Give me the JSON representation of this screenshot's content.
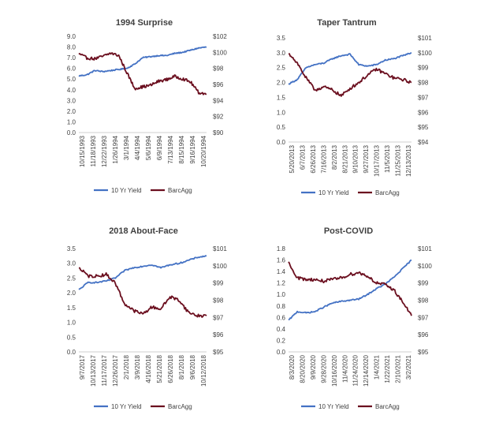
{
  "colors": {
    "yield": "#4472C4",
    "barcagg": "#6B0F1F",
    "text": "#404040",
    "axis": "#BFBFBF"
  },
  "chart_data": [
    {
      "type": "line",
      "title": "1994 Surprise",
      "x_tick_labels": [
        "10/15/1993",
        "11/18/1993",
        "12/22/1993",
        "1/26/1994",
        "3/1/1994",
        "4/4/1994",
        "5/6/1994",
        "6/9/1994",
        "7/13/1994",
        "8/15/1994",
        "9/16/1994",
        "10/20/1994"
      ],
      "y_left": {
        "ticks": [
          "0.0",
          "1.0",
          "2.0",
          "3.0",
          "4.0",
          "5.0",
          "6.0",
          "7.0",
          "8.0",
          "9.0"
        ],
        "range": [
          0,
          9
        ]
      },
      "y_right": {
        "ticks": [
          "$90",
          "$92",
          "$94",
          "$96",
          "$98",
          "$100",
          "$102"
        ],
        "range": [
          90,
          102
        ]
      },
      "legend": {
        "position": "bottom",
        "entries": [
          "10 Yr Yield",
          "BarcAgg"
        ]
      },
      "series": [
        {
          "name": "10 Yr Yield",
          "axis": "left",
          "values": [
            5.3,
            5.4,
            5.8,
            5.7,
            5.8,
            5.9,
            6.0,
            6.4,
            7.0,
            7.1,
            7.2,
            7.2,
            7.4,
            7.5,
            7.7,
            7.9,
            8.0
          ]
        },
        {
          "name": "BarcAgg",
          "axis": "right",
          "values": [
            99.8,
            99.3,
            99.2,
            99.5,
            99.9,
            99.6,
            97.5,
            95.5,
            95.7,
            95.9,
            96.4,
            96.6,
            97.0,
            96.7,
            96.3,
            95.0,
            94.8
          ]
        }
      ]
    },
    {
      "type": "line",
      "title": "Taper Tantrum",
      "x_tick_labels": [
        "5/20/2013",
        "6/7/2013",
        "6/26/2013",
        "7/16/2013",
        "8/2/2013",
        "8/21/2013",
        "9/10/2013",
        "9/27/2013",
        "10/17/2013",
        "11/5/2013",
        "11/25/2013",
        "12/13/2013"
      ],
      "y_left": {
        "ticks": [
          "0.0",
          "0.5",
          "1.0",
          "1.5",
          "2.0",
          "2.5",
          "3.0",
          "3.5"
        ],
        "range": [
          0,
          3.5
        ]
      },
      "y_right": {
        "ticks": [
          "$94",
          "$95",
          "$96",
          "$97",
          "$98",
          "$99",
          "$100",
          "$101"
        ],
        "range": [
          94,
          101
        ]
      },
      "legend": {
        "position": "bottom",
        "entries": [
          "10 Yr Yield",
          "BarcAgg"
        ]
      },
      "series": [
        {
          "name": "10 Yr Yield",
          "axis": "left",
          "values": [
            1.95,
            2.1,
            2.5,
            2.6,
            2.65,
            2.8,
            2.9,
            2.95,
            2.6,
            2.55,
            2.6,
            2.75,
            2.8,
            2.9,
            3.0
          ]
        },
        {
          "name": "BarcAgg",
          "axis": "right",
          "values": [
            100.0,
            99.3,
            98.3,
            97.5,
            97.7,
            97.5,
            97.1,
            97.6,
            98.0,
            98.5,
            98.9,
            98.6,
            98.3,
            98.2,
            98.0
          ]
        }
      ]
    },
    {
      "type": "line",
      "title": "2018 About-Face",
      "x_tick_labels": [
        "9/7/2017",
        "10/13/2017",
        "11/17/2017",
        "12/26/2017",
        "2/1/2018",
        "3/9/2018",
        "4/16/2018",
        "5/21/2018",
        "6/26/2018",
        "8/1/2018",
        "9/6/2018",
        "10/12/2018"
      ],
      "y_left": {
        "ticks": [
          "0.0",
          "0.5",
          "1.0",
          "1.5",
          "2.0",
          "2.5",
          "3.0",
          "3.5"
        ],
        "range": [
          0,
          3.5
        ]
      },
      "y_right": {
        "ticks": [
          "$95",
          "$96",
          "$97",
          "$98",
          "$99",
          "$100",
          "$101"
        ],
        "range": [
          95,
          101
        ]
      },
      "legend": {
        "position": "bottom",
        "entries": [
          "10 Yr Yield",
          "BarcAgg"
        ]
      },
      "series": [
        {
          "name": "10 Yr Yield",
          "axis": "left",
          "values": [
            2.1,
            2.35,
            2.35,
            2.4,
            2.5,
            2.75,
            2.85,
            2.9,
            2.95,
            2.85,
            2.95,
            3.0,
            3.1,
            3.2,
            3.25
          ]
        },
        {
          "name": "BarcAgg",
          "axis": "right",
          "values": [
            99.9,
            99.4,
            99.4,
            99.5,
            99.0,
            97.8,
            97.4,
            97.2,
            97.6,
            97.5,
            98.2,
            98.0,
            97.3,
            97.1,
            97.1
          ]
        }
      ]
    },
    {
      "type": "line",
      "title": "Post-COVID",
      "x_tick_labels": [
        "8/3/2020",
        "8/20/2020",
        "9/9/2020",
        "9/28/2020",
        "10/16/2020",
        "11/4/2020",
        "11/24/2020",
        "12/14/2020",
        "1/4/2021",
        "1/22/2021",
        "2/10/2021",
        "3/2/2021"
      ],
      "y_left": {
        "ticks": [
          "0.0",
          "0.2",
          "0.4",
          "0.6",
          "0.8",
          "1.0",
          "1.2",
          "1.4",
          "1.6",
          "1.8"
        ],
        "range": [
          0,
          1.8
        ]
      },
      "y_right": {
        "ticks": [
          "$95",
          "$96",
          "$97",
          "$98",
          "$99",
          "$100",
          "$101"
        ],
        "range": [
          95,
          101
        ]
      },
      "legend": {
        "position": "bottom",
        "entries": [
          "10 Yr Yield",
          "BarcAgg"
        ]
      },
      "series": [
        {
          "name": "10 Yr Yield",
          "axis": "left",
          "values": [
            0.55,
            0.7,
            0.68,
            0.7,
            0.78,
            0.85,
            0.88,
            0.9,
            0.92,
            1.0,
            1.1,
            1.18,
            1.3,
            1.45,
            1.6
          ]
        },
        {
          "name": "BarcAgg",
          "axis": "right",
          "values": [
            100.2,
            99.3,
            99.2,
            99.2,
            99.1,
            99.2,
            99.3,
            99.5,
            99.6,
            99.4,
            99.0,
            98.9,
            98.6,
            97.9,
            97.1
          ]
        }
      ]
    }
  ]
}
